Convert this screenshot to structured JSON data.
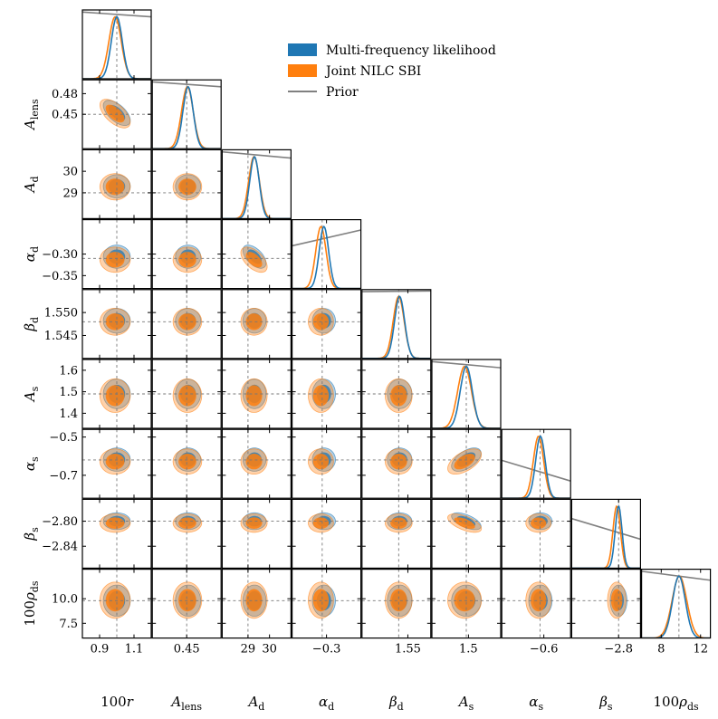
{
  "chart_data": {
    "type": "corner",
    "title": "",
    "colors": {
      "multi": "#1f77b4",
      "nilc": "#ff7f0e",
      "prior": "#808080",
      "truth": "#777777"
    },
    "legend": {
      "placement": "top-right",
      "entries": [
        {
          "label": "Multi-frequency likelihood",
          "color": "#1f77b4",
          "kind": "patch"
        },
        {
          "label": "Joint NILC SBI",
          "color": "#ff7f0e",
          "kind": "patch"
        },
        {
          "label": "Prior",
          "color": "#808080",
          "kind": "line"
        }
      ]
    },
    "params": [
      {
        "key": "r",
        "label_main": "100",
        "label_var": "r",
        "label_sub": "",
        "truth": 1.0,
        "range": [
          0.8,
          1.2
        ],
        "ticks": [
          0.9,
          1.1
        ],
        "tick_labels": [
          "0.9",
          "1.1"
        ],
        "y_ticks": [],
        "y_tick_labels": [],
        "multi": {
          "mean": 1.0,
          "sd": 0.032
        },
        "nilc": {
          "mean": 0.99,
          "sd": 0.036
        },
        "prior_line": [
          0.97,
          0.9
        ]
      },
      {
        "key": "Alens",
        "label_main": "",
        "label_var": "A",
        "label_sub": "lens",
        "truth": 0.45,
        "range": [
          0.4,
          0.5
        ],
        "ticks": [
          0.45
        ],
        "tick_labels": [
          "0.45"
        ],
        "y_ticks": [
          0.45,
          0.48
        ],
        "y_tick_labels": [
          "0.45",
          "0.48"
        ],
        "multi": {
          "mean": 0.452,
          "sd": 0.0075
        },
        "nilc": {
          "mean": 0.451,
          "sd": 0.0085
        },
        "prior_line": [
          0.97,
          0.9
        ]
      },
      {
        "key": "Ad",
        "label_main": "",
        "label_var": "A",
        "label_sub": "d",
        "truth": 29.0,
        "range": [
          27.8,
          31.0
        ],
        "ticks": [
          29,
          30
        ],
        "tick_labels": [
          "29",
          "30"
        ],
        "y_ticks": [
          29,
          30
        ],
        "y_tick_labels": [
          "29",
          "30"
        ],
        "multi": {
          "mean": 29.3,
          "sd": 0.22
        },
        "nilc": {
          "mean": 29.28,
          "sd": 0.25
        },
        "prior_line": [
          0.97,
          0.88
        ]
      },
      {
        "key": "alphad",
        "label_main": "",
        "label_var": "α",
        "label_sub": "d",
        "truth": -0.31,
        "range": [
          -0.38,
          -0.22
        ],
        "ticks": [
          -0.3
        ],
        "tick_labels": [
          "−0.3"
        ],
        "y_ticks": [
          -0.35,
          -0.3
        ],
        "y_tick_labels": [
          "−0.35",
          "−0.30"
        ],
        "multi": {
          "mean": -0.306,
          "sd": 0.011
        },
        "nilc": {
          "mean": -0.313,
          "sd": 0.012
        },
        "prior_line": [
          0.62,
          0.85
        ]
      },
      {
        "key": "betad",
        "label_main": "",
        "label_var": "β",
        "label_sub": "d",
        "truth": 1.548,
        "range": [
          1.54,
          1.555
        ],
        "ticks": [
          1.55
        ],
        "tick_labels": [
          "1.55"
        ],
        "y_ticks": [
          1.545,
          1.55
        ],
        "y_tick_labels": [
          "1.545",
          "1.550"
        ],
        "multi": {
          "mean": 1.5482,
          "sd": 0.0011
        },
        "nilc": {
          "mean": 1.548,
          "sd": 0.0012
        },
        "prior_line": [
          0.97,
          0.98
        ]
      },
      {
        "key": "As",
        "label_main": "",
        "label_var": "A",
        "label_sub": "s",
        "truth": 1.49,
        "range": [
          1.33,
          1.65
        ],
        "ticks": [
          1.5
        ],
        "tick_labels": [
          "1.5"
        ],
        "y_ticks": [
          1.4,
          1.5,
          1.6
        ],
        "y_tick_labels": [
          "1.4",
          "1.5",
          "1.6"
        ],
        "multi": {
          "mean": 1.49,
          "sd": 0.028
        },
        "nilc": {
          "mean": 1.482,
          "sd": 0.032
        },
        "prior_line": [
          0.97,
          0.88
        ]
      },
      {
        "key": "alphas",
        "label_main": "",
        "label_var": "α",
        "label_sub": "s",
        "truth": -0.62,
        "range": [
          -0.82,
          -0.46
        ],
        "ticks": [
          -0.6
        ],
        "tick_labels": [
          "−0.6"
        ],
        "y_ticks": [
          -0.7,
          -0.5
        ],
        "y_tick_labels": [
          "−0.7",
          "−0.5"
        ],
        "multi": {
          "mean": -0.618,
          "sd": 0.025
        },
        "nilc": {
          "mean": -0.628,
          "sd": 0.027
        },
        "prior_line": [
          0.55,
          0.25
        ]
      },
      {
        "key": "betas",
        "label_main": "",
        "label_var": "β",
        "label_sub": "s",
        "truth": -2.8,
        "range": [
          -2.875,
          -2.765
        ],
        "ticks": [
          -2.8
        ],
        "tick_labels": [
          "−2.8"
        ],
        "y_ticks": [
          -2.84,
          -2.8
        ],
        "y_tick_labels": [
          "−2.84",
          "−2.80"
        ],
        "multi": {
          "mean": -2.8,
          "sd": 0.0055
        },
        "nilc": {
          "mean": -2.803,
          "sd": 0.006
        },
        "prior_line": [
          0.72,
          0.42
        ]
      },
      {
        "key": "rhods",
        "label_main": "100",
        "label_var": "ρ",
        "label_sub": "ds",
        "truth": 9.8,
        "range": [
          6.0,
          13.0
        ],
        "ticks": [
          8,
          12
        ],
        "tick_labels": [
          "8",
          "12"
        ],
        "y_ticks": [
          7.5,
          10.0
        ],
        "y_tick_labels": [
          "7.5",
          "10.0"
        ],
        "multi": {
          "mean": 9.8,
          "sd": 0.65
        },
        "nilc": {
          "mean": 9.85,
          "sd": 0.75
        },
        "prior_line": [
          0.97,
          0.84
        ]
      }
    ],
    "correlations": {
      "r-Alens": -0.6,
      "alphad-Ad": -0.55,
      "As-alphas": 0.55,
      "As-betas": -0.6
    }
  }
}
